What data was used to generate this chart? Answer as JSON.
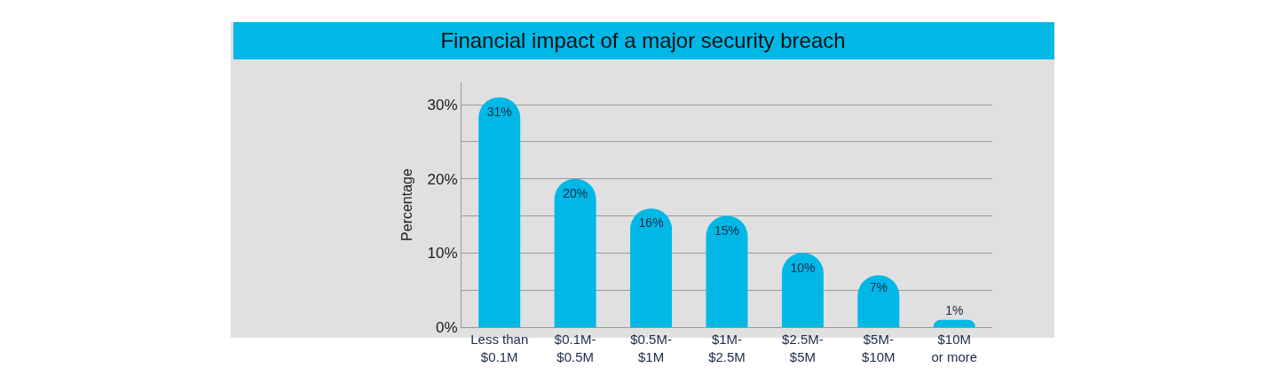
{
  "chart_data": {
    "type": "bar",
    "title": "Financial impact of a major security breach",
    "ylabel": "Percentage",
    "categories": [
      "Less than\n$0.1M",
      "$0.1M-\n$0.5M",
      "$0.5M-\n$1M",
      "$1M-\n$2.5M",
      "$2.5M-\n$5M",
      "$5M-\n$10M",
      "$10M\nor more"
    ],
    "values": [
      31,
      20,
      16,
      15,
      10,
      7,
      1
    ],
    "value_labels": [
      "31%",
      "20%",
      "16%",
      "15%",
      "10%",
      "7%",
      "1%"
    ],
    "color": "#00b8e6",
    "ylim": [
      0,
      33
    ],
    "yticks": [
      {
        "value": 0,
        "label": "0%"
      },
      {
        "value": 5,
        "label": null
      },
      {
        "value": 10,
        "label": "10%"
      },
      {
        "value": 15,
        "label": null
      },
      {
        "value": 20,
        "label": "20%"
      },
      {
        "value": 25,
        "label": null
      },
      {
        "value": 30,
        "label": "30%"
      }
    ],
    "grid": "y",
    "legend": false
  }
}
